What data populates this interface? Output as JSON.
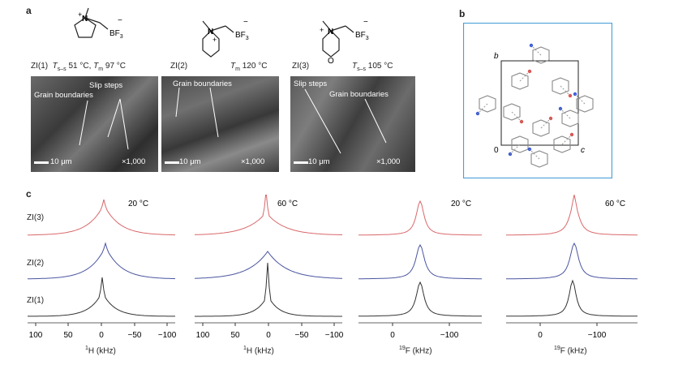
{
  "panel_a": {
    "letter": "a",
    "molecules": [
      {
        "name": "ZI(1)",
        "props": "T",
        "props_sub1": "s–s",
        "props_mid": " 51 °C, ",
        "props_t2": "T",
        "props_sub2": "m",
        "props_end": " 97 °C"
      },
      {
        "name": "ZI(2)",
        "props_t": "T",
        "props_sub": "m",
        "props_end": " 120 °C"
      },
      {
        "name": "ZI(3)",
        "props_t": "T",
        "props_sub": "s–s",
        "props_end": " 105 °C"
      }
    ],
    "formula_bf3": "BF",
    "formula_sub": "3",
    "sem": [
      {
        "labels": [
          "Slip steps",
          "Grain boundaries"
        ],
        "scale": "10 μm",
        "mag": "×1,000"
      },
      {
        "labels": [
          "Grain boundaries"
        ],
        "scale": "10 μm",
        "mag": "×1,000"
      },
      {
        "labels": [
          "Slip steps",
          "Grain boundaries"
        ],
        "scale": "10 μm",
        "mag": "×1,000"
      }
    ]
  },
  "panel_b": {
    "letter": "b",
    "axis_b": "b",
    "axis_c": "c",
    "origin": "0",
    "box_color": "#4a9fd8"
  },
  "panel_c": {
    "letter": "c",
    "rows": [
      "ZI(3)",
      "ZI(2)",
      "ZI(1)"
    ],
    "row_colors": [
      "#d9686b",
      "#4a55a0",
      "#333333"
    ],
    "plots": [
      {
        "temp": "20 °C",
        "xlabel_sup": "1",
        "xlabel": "H (kHz)",
        "ticks": [
          "100",
          "50",
          "0",
          "−50",
          "−100"
        ]
      },
      {
        "temp": "60 °C",
        "xlabel_sup": "1",
        "xlabel": "H (kHz)",
        "ticks": [
          "100",
          "50",
          "0",
          "−50",
          "−100"
        ]
      },
      {
        "temp": "20 °C",
        "xlabel_sup": "19",
        "xlabel": "F (kHz)",
        "ticks": [
          "0",
          "−100"
        ]
      },
      {
        "temp": "60 °C",
        "xlabel_sup": "19",
        "xlabel": "F (kHz)",
        "ticks": [
          "0",
          "−100"
        ]
      }
    ]
  }
}
